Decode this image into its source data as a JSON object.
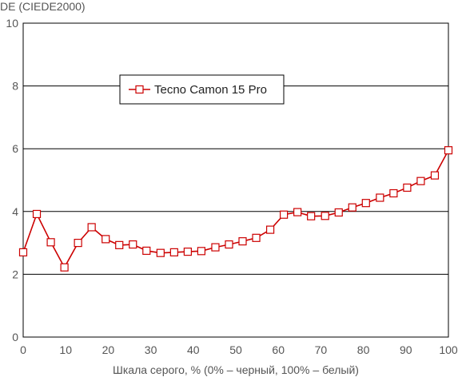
{
  "chart_data": {
    "type": "line",
    "ylabel": "DE (CIEDE2000)",
    "xlabel": "Шкала серого, % (0% – черный, 100% – белый)",
    "xlim": [
      0,
      100
    ],
    "ylim": [
      0,
      10
    ],
    "x_ticks": [
      0,
      10,
      20,
      30,
      40,
      50,
      60,
      70,
      80,
      90,
      100
    ],
    "y_ticks": [
      0,
      2,
      4,
      6,
      8,
      10
    ],
    "grid": "horizontal",
    "legend_position": "top-left inside plot",
    "series": [
      {
        "name": "Tecno Camon 15 Pro",
        "color": "#cc0000",
        "marker": "hollow-square",
        "x": [
          0,
          3.2,
          6.5,
          9.7,
          12.9,
          16.1,
          19.4,
          22.6,
          25.8,
          29.0,
          32.3,
          35.5,
          38.7,
          41.9,
          45.2,
          48.4,
          51.6,
          54.8,
          58.1,
          61.3,
          64.5,
          67.7,
          71.0,
          74.2,
          77.4,
          80.6,
          83.9,
          87.1,
          90.3,
          93.5,
          96.8,
          100
        ],
        "y": [
          2.7,
          3.92,
          3.02,
          2.22,
          3.0,
          3.5,
          3.12,
          2.93,
          2.95,
          2.75,
          2.68,
          2.7,
          2.72,
          2.74,
          2.86,
          2.95,
          3.05,
          3.16,
          3.42,
          3.9,
          3.98,
          3.85,
          3.86,
          3.97,
          4.13,
          4.27,
          4.44,
          4.58,
          4.76,
          4.97,
          5.15,
          5.95
        ]
      }
    ]
  }
}
